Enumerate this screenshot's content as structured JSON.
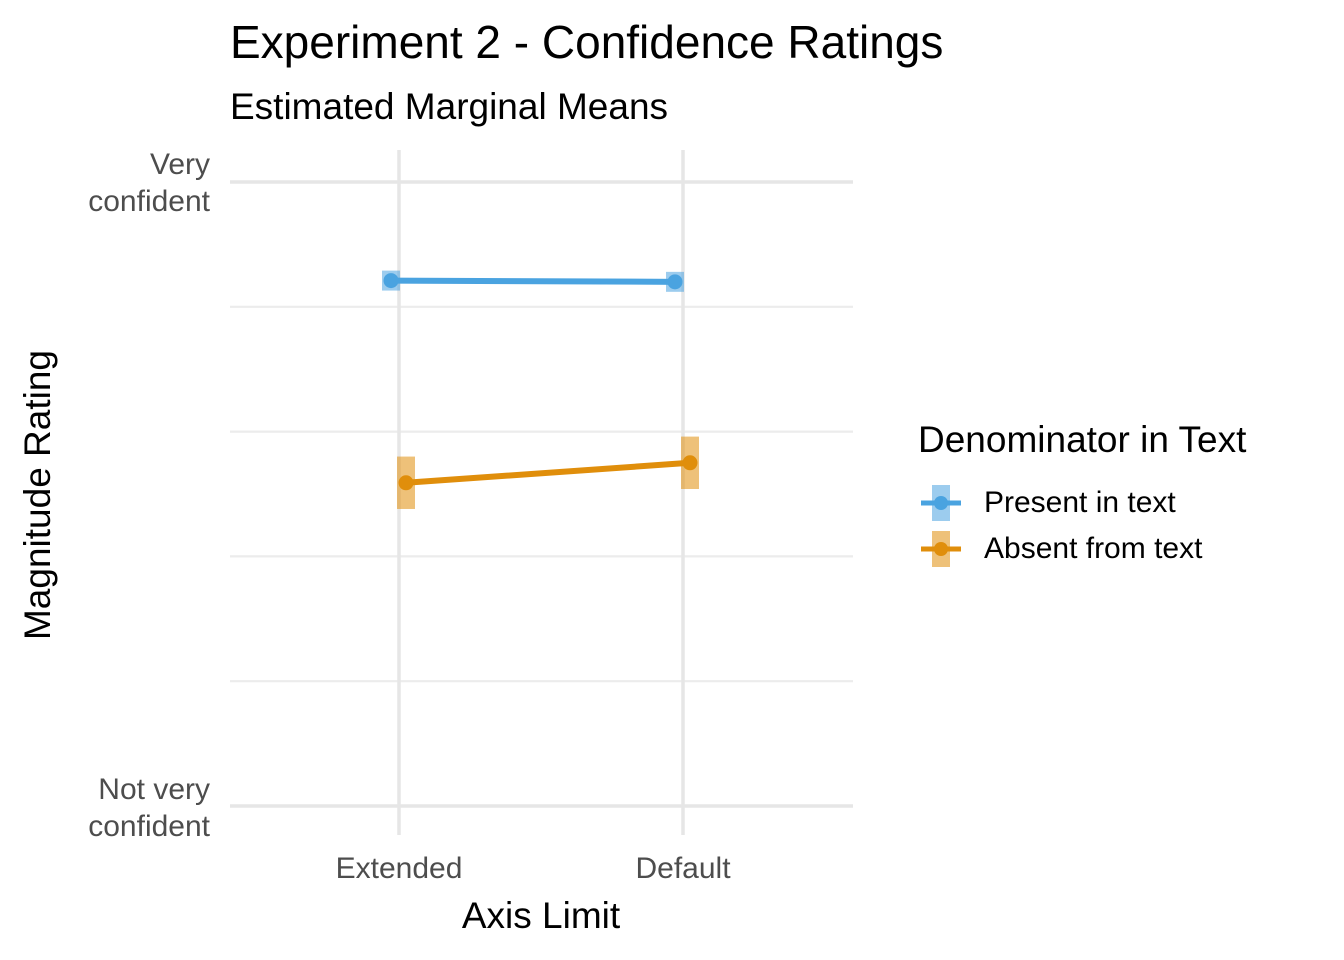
{
  "chart_data": {
    "type": "line",
    "title": "Experiment 2 - Confidence Ratings",
    "subtitle": "Estimated Marginal Means",
    "xlabel": "Axis Limit",
    "ylabel": "Magnitude Rating",
    "categories": [
      "Extended",
      "Default"
    ],
    "y_tick_labels": [
      {
        "value": 1,
        "lines": [
          "Not very",
          "confident"
        ]
      },
      {
        "value": 6,
        "lines": [
          "Very",
          "confident"
        ]
      }
    ],
    "ylim": [
      1,
      6
    ],
    "y_gridlines": [
      1,
      2,
      3,
      4,
      5,
      6
    ],
    "grid": true,
    "legend": {
      "title": "Denominator in Text",
      "placement": "right"
    },
    "series": [
      {
        "name": "Present in text",
        "color": "#4aa3e0",
        "values": [
          5.21,
          5.2
        ],
        "ci_low": [
          5.13,
          5.12
        ],
        "ci_high": [
          5.29,
          5.28
        ]
      },
      {
        "name": "Absent from text",
        "color": "#e08e0b",
        "values": [
          3.59,
          3.75
        ],
        "ci_low": [
          3.38,
          3.54
        ],
        "ci_high": [
          3.8,
          3.96
        ]
      }
    ]
  }
}
